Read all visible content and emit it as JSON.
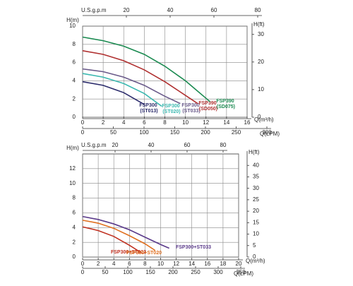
{
  "chart_data": [
    {
      "type": "line",
      "x_label": "Q(m³/h)",
      "xlim": [
        0,
        16
      ],
      "xticks": [
        0,
        2,
        4,
        6,
        8,
        10,
        12,
        14,
        16
      ],
      "y_label": "H(m)",
      "ylim": [
        0,
        10
      ],
      "yticks": [
        0,
        2,
        4,
        6,
        8,
        10
      ],
      "y2_label": "H(ft)",
      "y2lim": [
        0,
        33
      ],
      "y2ticks": [
        0,
        10,
        20,
        30
      ],
      "x2_label": "Q(LPM)",
      "x2lim": [
        0,
        300
      ],
      "x2ticks": [
        0,
        50,
        100,
        150,
        200,
        250,
        300
      ],
      "x3_label": "U.S.g.p.m",
      "x3lim": [
        0,
        80
      ],
      "x3ticks": [
        20,
        40,
        60,
        80
      ],
      "grid": true,
      "series": [
        {
          "name": "FSP300 (ST013)",
          "color": "#2b2b6b",
          "x": [
            0,
            2,
            4,
            6
          ],
          "values": [
            3.9,
            3.5,
            2.7,
            1.4
          ]
        },
        {
          "name": "FSP300 (ST020)",
          "color": "#3bb8b0",
          "x": [
            0,
            2,
            4,
            6,
            7.7
          ],
          "values": [
            4.8,
            4.4,
            3.7,
            2.6,
            1.2
          ]
        },
        {
          "name": "FSP300 (ST033)",
          "color": "#6a5a8a",
          "x": [
            0,
            2,
            4,
            6,
            8,
            9.5
          ],
          "values": [
            5.3,
            5.0,
            4.4,
            3.5,
            2.3,
            1.5
          ]
        },
        {
          "name": "FSP390 (SD050)",
          "color": "#b03030",
          "x": [
            0,
            2,
            4,
            6,
            8,
            10,
            11.2
          ],
          "values": [
            7.3,
            6.9,
            6.2,
            5.2,
            3.9,
            2.4,
            1.5
          ]
        },
        {
          "name": "FSP390 (SD075)",
          "color": "#1a8a50",
          "x": [
            0,
            2,
            4,
            6,
            8,
            10,
            12.4
          ],
          "values": [
            8.8,
            8.4,
            7.8,
            6.9,
            5.6,
            4.0,
            1.7
          ]
        }
      ]
    },
    {
      "type": "line",
      "x_label": "Q(m³/h)",
      "xlim": [
        0,
        20
      ],
      "xticks": [
        0,
        2,
        4,
        6,
        8,
        10,
        12,
        14,
        16,
        18,
        20
      ],
      "y_label": "H(m)",
      "ylim": [
        0,
        14
      ],
      "yticks": [
        0,
        2,
        4,
        6,
        8,
        10,
        12
      ],
      "y2_label": "H(ft)",
      "y2lim": [
        0,
        45
      ],
      "y2ticks": [
        0,
        5,
        10,
        15,
        20,
        25,
        30,
        35,
        40
      ],
      "x2_label": "Q(LPM)",
      "x2lim": [
        0,
        350
      ],
      "x2ticks": [
        0,
        50,
        100,
        150,
        200,
        250,
        300,
        350
      ],
      "x3_label": "U.S.g.p.m",
      "x3lim": [
        0,
        80
      ],
      "x3ticks": [
        20,
        40,
        60,
        80
      ],
      "grid": true,
      "series": [
        {
          "name": "FSP300+ST013",
          "color": "#c03020",
          "x": [
            0,
            2,
            4,
            6,
            7.5
          ],
          "values": [
            4.1,
            3.6,
            2.8,
            1.6,
            0.6
          ]
        },
        {
          "name": "FSP300+ST020",
          "color": "#e07020",
          "x": [
            0,
            2,
            4,
            6,
            8,
            9.3
          ],
          "values": [
            5.0,
            4.6,
            3.9,
            2.9,
            1.8,
            0.9
          ]
        },
        {
          "name": "FSP300+ST033",
          "color": "#5a3a8a",
          "x": [
            0,
            2,
            4,
            6,
            8,
            10,
            11.1
          ],
          "values": [
            5.5,
            5.1,
            4.5,
            3.7,
            2.7,
            1.7,
            1.2
          ]
        }
      ]
    }
  ]
}
